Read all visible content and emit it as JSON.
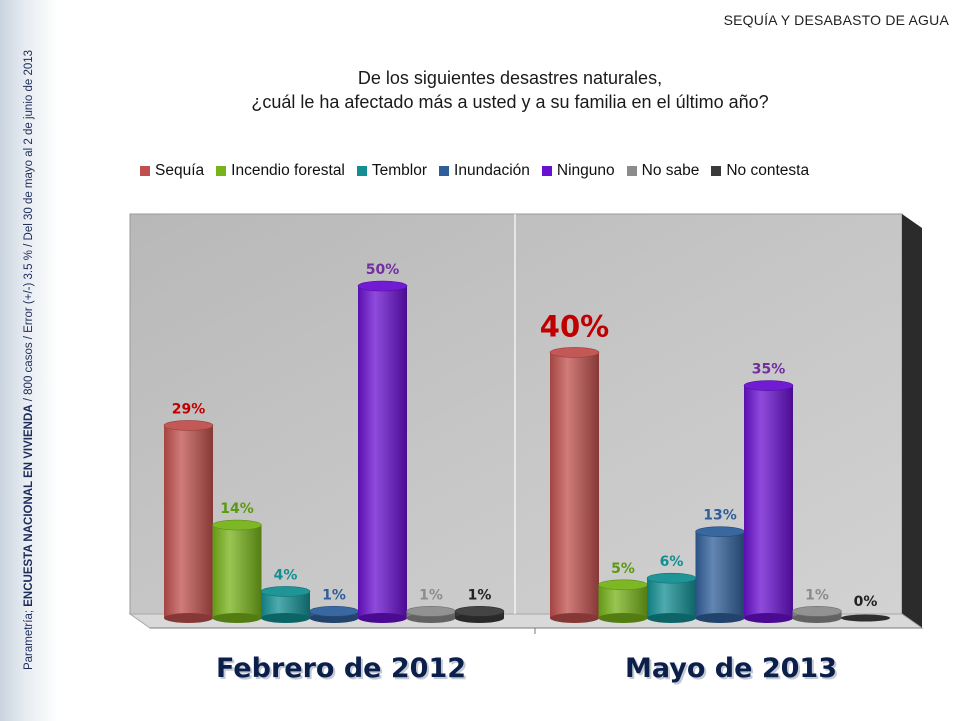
{
  "header": {
    "tag": "SEQUÍA Y DESABASTO DE AGUA",
    "question_line1": "De los siguientes desastres naturales,",
    "question_line2": "¿cuál le ha afectado más a usted y a su familia en el último año?"
  },
  "sidebar": {
    "source_prefix": "Parametría; ",
    "source_bold": "ENCUESTA NACIONAL EN VIVIENDA",
    "source_rest": " / 800 casos / Error (+/-) 3.5 % / Del 30 de mayo al 2  de junio de 2013"
  },
  "colors": {
    "Sequía": "#c0504d",
    "Incendio forestal": "#77b31a",
    "Temblor": "#138f93",
    "Inundación": "#2f5f9a",
    "Ninguno": "#6a10d0",
    "No sabe": "#8c8c8c",
    "No contesta": "#3a3a3a"
  },
  "label_colors": {
    "Sequía": "#c00000",
    "Incendio forestal": "#5a9a10",
    "Temblor": "#138f93",
    "Inundación": "#2f5f9a",
    "Ninguno": "#7030a0",
    "No sabe": "#8c8c8c",
    "No contesta": "#222222"
  },
  "chart_data": {
    "type": "bar",
    "categories": [
      "Sequía",
      "Incendio forestal",
      "Temblor",
      "Inundación",
      "Ninguno",
      "No sabe",
      "No contesta"
    ],
    "panels": [
      {
        "title": "Febrero de 2012",
        "values": [
          29,
          14,
          4,
          1,
          50,
          1,
          1
        ],
        "labels": [
          "29%",
          "14%",
          "4%",
          "1%",
          "50%",
          "1%",
          "1%"
        ]
      },
      {
        "title": "Mayo de 2013",
        "values": [
          40,
          5,
          6,
          13,
          35,
          1,
          0
        ],
        "labels": [
          "40%",
          "5%",
          "6%",
          "13%",
          "35%",
          "1%",
          "0%"
        ]
      }
    ],
    "ylim": [
      0,
      60
    ],
    "legend": "top",
    "grid": false
  }
}
